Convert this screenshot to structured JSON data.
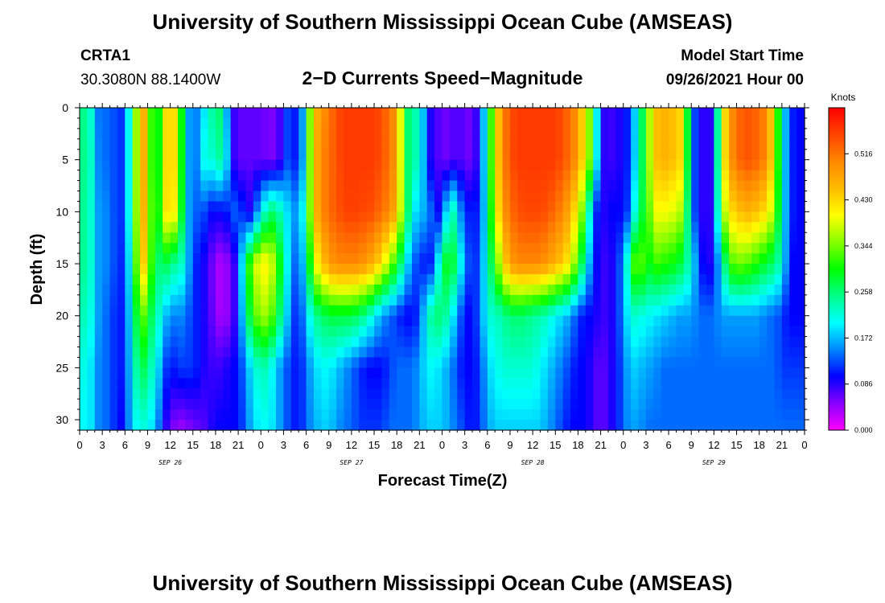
{
  "page": {
    "title_top": "University of Southern Mississippi Ocean Cube (AMSEAS)",
    "title_bottom": "University of Southern Mississippi Ocean Cube (AMSEAS)",
    "station": "CRTA1",
    "coordinates": "30.3080N  88.1400W",
    "subtitle": "2−D Currents Speed−Magnitude",
    "model_label": "Model Start Time",
    "model_time": "09/26/2021 Hour 00"
  },
  "chart_data": {
    "type": "heatmap",
    "title": "2−D Currents Speed−Magnitude",
    "xlabel": "Forecast Time(Z)",
    "ylabel": "Depth (ft)",
    "x_unit": "hours since 09/26/2021 00Z",
    "xlim": [
      0,
      96
    ],
    "ylim": [
      31,
      0
    ],
    "x_tick_labels": [
      "0",
      "3",
      "6",
      "9",
      "12",
      "15",
      "18",
      "21",
      "0",
      "3",
      "6",
      "9",
      "12",
      "15",
      "18",
      "21",
      "0",
      "3",
      "6",
      "9",
      "12",
      "15",
      "18",
      "21",
      "0",
      "3",
      "6",
      "9",
      "12",
      "15",
      "18",
      "21",
      "0"
    ],
    "y_ticks": [
      0,
      5,
      10,
      15,
      20,
      25,
      30
    ],
    "date_labels": [
      {
        "label": "SEP 26",
        "hour": 12
      },
      {
        "label": "SEP 27",
        "hour": 36
      },
      {
        "label": "SEP 28",
        "hour": 60
      },
      {
        "label": "SEP 29",
        "hour": 84
      }
    ],
    "colorbar": {
      "unit": "Knots",
      "min": 0.0,
      "max": 0.602,
      "ticks": [
        "0.000",
        "0.086",
        "0.172",
        "0.258",
        "0.344",
        "0.430",
        "0.516"
      ],
      "colors": [
        "#ff00ff",
        "#8800ff",
        "#0000ff",
        "#0088ff",
        "#00ffff",
        "#00ff88",
        "#00ff00",
        "#88ff00",
        "#ffff00",
        "#ffbb00",
        "#ff8800",
        "#ff4400",
        "#ff0000"
      ]
    },
    "depths": [
      0,
      5,
      10,
      15,
      20,
      25,
      31
    ],
    "hours": [
      0,
      1,
      2,
      3,
      4,
      5,
      6,
      7,
      8,
      9,
      10,
      11,
      12,
      13,
      14,
      15,
      16,
      17,
      18,
      19,
      20,
      21,
      22,
      23,
      24,
      25,
      26,
      27,
      28,
      29,
      30,
      31,
      32,
      33,
      34,
      35,
      36,
      37,
      38,
      39,
      40,
      41,
      42,
      43,
      44,
      45,
      46,
      47,
      48,
      49,
      50,
      51,
      52,
      53,
      54,
      55,
      56,
      57,
      58,
      59,
      60,
      61,
      62,
      63,
      64,
      65,
      66,
      67,
      68,
      69,
      70,
      71,
      72,
      73,
      74,
      75,
      76,
      77,
      78,
      79,
      80,
      81,
      82,
      83,
      84,
      85,
      86,
      87,
      88,
      89,
      90,
      91,
      92,
      93,
      94,
      95,
      96
    ],
    "values": [
      [
        0.25,
        0.25,
        0.19,
        0.1,
        0.18,
        0.08,
        0.16,
        0.24,
        0.48,
        0.44,
        0.2,
        0.4,
        0.45,
        0.4,
        0.2,
        0.12,
        0.18,
        0.2,
        0.28,
        0.24,
        0.09,
        0.07,
        0.06,
        0.07,
        0.06,
        0.06,
        0.05,
        0.1,
        0.15,
        0.07,
        0.25,
        0.45,
        0.48,
        0.52,
        0.54,
        0.56,
        0.56,
        0.56,
        0.56,
        0.56,
        0.54,
        0.52,
        0.48,
        0.3,
        0.22,
        0.25,
        0.1,
        0.08,
        0.06,
        0.06,
        0.08,
        0.06,
        0.06,
        0.1,
        0.25,
        0.4,
        0.5,
        0.54,
        0.56,
        0.56,
        0.56,
        0.56,
        0.56,
        0.56,
        0.54,
        0.52,
        0.48,
        0.4,
        0.3,
        0.09,
        0.08,
        0.08,
        0.1,
        0.12,
        0.24,
        0.3,
        0.44,
        0.46,
        0.46,
        0.44,
        0.42,
        0.15,
        0.1,
        0.07,
        0.1,
        0.38,
        0.48,
        0.52,
        0.54,
        0.54,
        0.52,
        0.5,
        0.4,
        0.22,
        0.12,
        0.1,
        0.1
      ],
      [
        0.25,
        0.25,
        0.2,
        0.1,
        0.18,
        0.08,
        0.16,
        0.24,
        0.48,
        0.44,
        0.2,
        0.4,
        0.45,
        0.4,
        0.2,
        0.12,
        0.18,
        0.24,
        0.2,
        0.28,
        0.09,
        0.07,
        0.06,
        0.07,
        0.06,
        0.06,
        0.05,
        0.1,
        0.15,
        0.07,
        0.25,
        0.45,
        0.5,
        0.52,
        0.54,
        0.56,
        0.56,
        0.56,
        0.56,
        0.56,
        0.54,
        0.52,
        0.48,
        0.3,
        0.22,
        0.25,
        0.1,
        0.08,
        0.06,
        0.06,
        0.08,
        0.06,
        0.06,
        0.1,
        0.25,
        0.4,
        0.5,
        0.54,
        0.56,
        0.56,
        0.56,
        0.56,
        0.56,
        0.56,
        0.54,
        0.52,
        0.48,
        0.4,
        0.3,
        0.09,
        0.08,
        0.08,
        0.1,
        0.12,
        0.24,
        0.3,
        0.44,
        0.46,
        0.46,
        0.44,
        0.42,
        0.15,
        0.1,
        0.07,
        0.1,
        0.38,
        0.48,
        0.52,
        0.54,
        0.54,
        0.52,
        0.5,
        0.4,
        0.22,
        0.12,
        0.1,
        0.1
      ],
      [
        0.25,
        0.24,
        0.2,
        0.12,
        0.18,
        0.08,
        0.16,
        0.24,
        0.47,
        0.44,
        0.22,
        0.4,
        0.44,
        0.38,
        0.2,
        0.12,
        0.15,
        0.1,
        0.1,
        0.1,
        0.12,
        0.15,
        0.08,
        0.1,
        0.2,
        0.25,
        0.27,
        0.2,
        0.18,
        0.14,
        0.26,
        0.44,
        0.5,
        0.52,
        0.54,
        0.55,
        0.56,
        0.55,
        0.55,
        0.54,
        0.52,
        0.5,
        0.46,
        0.3,
        0.22,
        0.16,
        0.18,
        0.1,
        0.1,
        0.26,
        0.2,
        0.1,
        0.12,
        0.1,
        0.24,
        0.38,
        0.48,
        0.52,
        0.54,
        0.55,
        0.55,
        0.55,
        0.54,
        0.52,
        0.5,
        0.46,
        0.4,
        0.3,
        0.14,
        0.08,
        0.1,
        0.1,
        0.1,
        0.14,
        0.28,
        0.28,
        0.4,
        0.4,
        0.4,
        0.38,
        0.36,
        0.15,
        0.1,
        0.07,
        0.1,
        0.34,
        0.42,
        0.44,
        0.46,
        0.46,
        0.44,
        0.42,
        0.36,
        0.22,
        0.12,
        0.1,
        0.1
      ],
      [
        0.25,
        0.24,
        0.2,
        0.12,
        0.18,
        0.08,
        0.15,
        0.22,
        0.45,
        0.42,
        0.22,
        0.3,
        0.24,
        0.25,
        0.2,
        0.12,
        0.1,
        0.08,
        0.04,
        0.03,
        0.06,
        0.1,
        0.28,
        0.36,
        0.42,
        0.4,
        0.36,
        0.24,
        0.16,
        0.12,
        0.22,
        0.38,
        0.44,
        0.48,
        0.5,
        0.5,
        0.5,
        0.5,
        0.48,
        0.46,
        0.42,
        0.36,
        0.3,
        0.22,
        0.14,
        0.12,
        0.1,
        0.12,
        0.28,
        0.3,
        0.26,
        0.14,
        0.12,
        0.12,
        0.24,
        0.3,
        0.42,
        0.48,
        0.5,
        0.5,
        0.5,
        0.5,
        0.48,
        0.46,
        0.44,
        0.4,
        0.32,
        0.22,
        0.12,
        0.08,
        0.08,
        0.1,
        0.16,
        0.28,
        0.38,
        0.28,
        0.32,
        0.32,
        0.3,
        0.3,
        0.26,
        0.22,
        0.12,
        0.08,
        0.1,
        0.2,
        0.32,
        0.34,
        0.34,
        0.32,
        0.3,
        0.28,
        0.26,
        0.22,
        0.1,
        0.1,
        0.1
      ],
      [
        0.24,
        0.22,
        0.2,
        0.12,
        0.16,
        0.08,
        0.14,
        0.2,
        0.36,
        0.3,
        0.24,
        0.2,
        0.14,
        0.16,
        0.14,
        0.12,
        0.1,
        0.08,
        0.05,
        0.03,
        0.06,
        0.1,
        0.24,
        0.32,
        0.36,
        0.36,
        0.3,
        0.22,
        0.14,
        0.1,
        0.18,
        0.24,
        0.26,
        0.28,
        0.28,
        0.28,
        0.28,
        0.26,
        0.24,
        0.2,
        0.16,
        0.14,
        0.12,
        0.1,
        0.1,
        0.12,
        0.22,
        0.26,
        0.26,
        0.22,
        0.16,
        0.1,
        0.1,
        0.14,
        0.22,
        0.22,
        0.24,
        0.26,
        0.26,
        0.26,
        0.24,
        0.24,
        0.22,
        0.2,
        0.18,
        0.16,
        0.12,
        0.1,
        0.1,
        0.08,
        0.08,
        0.1,
        0.16,
        0.22,
        0.22,
        0.2,
        0.2,
        0.18,
        0.18,
        0.16,
        0.16,
        0.16,
        0.14,
        0.14,
        0.14,
        0.16,
        0.16,
        0.16,
        0.16,
        0.16,
        0.16,
        0.14,
        0.14,
        0.12,
        0.1,
        0.1,
        0.1
      ],
      [
        0.22,
        0.2,
        0.18,
        0.12,
        0.16,
        0.08,
        0.14,
        0.18,
        0.3,
        0.24,
        0.22,
        0.14,
        0.1,
        0.12,
        0.12,
        0.12,
        0.1,
        0.08,
        0.08,
        0.08,
        0.1,
        0.1,
        0.16,
        0.2,
        0.24,
        0.22,
        0.18,
        0.14,
        0.12,
        0.1,
        0.14,
        0.18,
        0.2,
        0.2,
        0.18,
        0.16,
        0.14,
        0.12,
        0.1,
        0.1,
        0.1,
        0.12,
        0.14,
        0.14,
        0.14,
        0.16,
        0.2,
        0.2,
        0.18,
        0.16,
        0.12,
        0.1,
        0.1,
        0.12,
        0.18,
        0.2,
        0.22,
        0.22,
        0.22,
        0.22,
        0.22,
        0.2,
        0.18,
        0.16,
        0.14,
        0.12,
        0.1,
        0.1,
        0.08,
        0.06,
        0.08,
        0.1,
        0.14,
        0.18,
        0.18,
        0.16,
        0.16,
        0.14,
        0.14,
        0.14,
        0.14,
        0.14,
        0.14,
        0.14,
        0.14,
        0.14,
        0.14,
        0.14,
        0.14,
        0.14,
        0.14,
        0.14,
        0.14,
        0.12,
        0.12,
        0.12,
        0.12
      ],
      [
        0.2,
        0.2,
        0.18,
        0.12,
        0.16,
        0.08,
        0.12,
        0.18,
        0.22,
        0.2,
        0.18,
        0.1,
        0.06,
        0.04,
        0.04,
        0.06,
        0.06,
        0.08,
        0.1,
        0.1,
        0.1,
        0.1,
        0.14,
        0.18,
        0.2,
        0.2,
        0.18,
        0.14,
        0.12,
        0.1,
        0.14,
        0.16,
        0.18,
        0.18,
        0.16,
        0.14,
        0.14,
        0.12,
        0.12,
        0.12,
        0.12,
        0.14,
        0.14,
        0.14,
        0.14,
        0.16,
        0.18,
        0.18,
        0.18,
        0.16,
        0.14,
        0.12,
        0.1,
        0.12,
        0.16,
        0.18,
        0.18,
        0.18,
        0.18,
        0.18,
        0.18,
        0.18,
        0.16,
        0.14,
        0.12,
        0.1,
        0.1,
        0.1,
        0.08,
        0.06,
        0.08,
        0.1,
        0.14,
        0.16,
        0.16,
        0.14,
        0.14,
        0.14,
        0.14,
        0.14,
        0.14,
        0.14,
        0.14,
        0.14,
        0.14,
        0.14,
        0.14,
        0.14,
        0.14,
        0.14,
        0.14,
        0.14,
        0.14,
        0.14,
        0.14,
        0.14,
        0.14
      ]
    ]
  }
}
